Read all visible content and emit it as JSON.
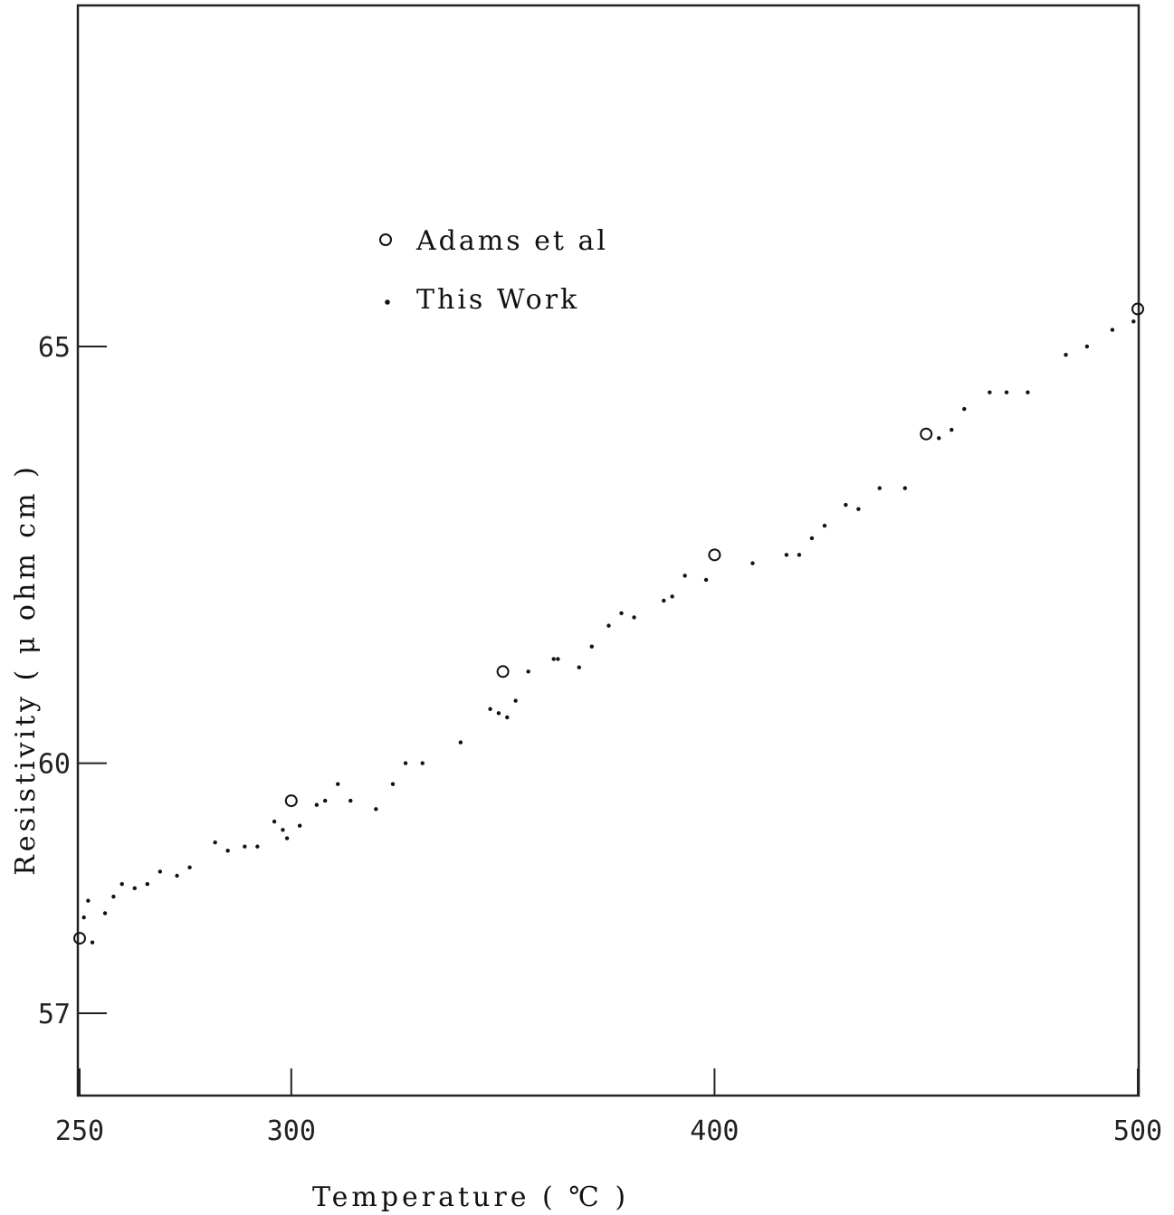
{
  "chart_data": {
    "type": "scatter",
    "title": "",
    "xlabel": "Temperature  ( ℃ )",
    "ylabel": "Resistivity  ( μ  ohm  cm )",
    "xlim": [
      250,
      500
    ],
    "ylim": [
      56,
      69
    ],
    "x_ticks": [
      {
        "value": 250,
        "label": "250"
      },
      {
        "value": 300,
        "label": "300"
      },
      {
        "value": 400,
        "label": "400"
      },
      {
        "value": 500,
        "label": "500"
      }
    ],
    "y_ticks": [
      {
        "value": 57,
        "label": "57"
      },
      {
        "value": 60,
        "label": "60"
      },
      {
        "value": 65,
        "label": "65"
      }
    ],
    "grid": false,
    "legend_position": "top-left",
    "series": [
      {
        "name": "Adams  et  al",
        "marker": "open-circle",
        "x": [
          250,
          300,
          350,
          400,
          450,
          500
        ],
        "y": [
          57.9,
          59.55,
          61.1,
          62.5,
          63.95,
          65.45
        ]
      },
      {
        "name": "This Work",
        "marker": "dot",
        "x": [
          251,
          252,
          253,
          256,
          258,
          260,
          263,
          266,
          269,
          273,
          276,
          282,
          285,
          289,
          292,
          296,
          298,
          299,
          302,
          306,
          308,
          311,
          314,
          320,
          324,
          327,
          331,
          340,
          347,
          349,
          351,
          353,
          356,
          362,
          363,
          368,
          371,
          375,
          378,
          381,
          388,
          390,
          393,
          398,
          409,
          417,
          420,
          423,
          426,
          431,
          434,
          439,
          445,
          453,
          456,
          459,
          465,
          469,
          474,
          483,
          488,
          494,
          499
        ],
        "y": [
          58.15,
          58.35,
          57.85,
          58.2,
          58.4,
          58.55,
          58.5,
          58.55,
          58.7,
          58.65,
          58.75,
          59.05,
          58.95,
          59.0,
          59.0,
          59.3,
          59.2,
          59.1,
          59.25,
          59.5,
          59.55,
          59.75,
          59.55,
          59.45,
          59.75,
          60.0,
          60.0,
          60.25,
          60.65,
          60.6,
          60.55,
          60.75,
          61.1,
          61.25,
          61.25,
          61.15,
          61.4,
          61.65,
          61.8,
          61.75,
          61.95,
          62.0,
          62.25,
          62.2,
          62.4,
          62.5,
          62.5,
          62.7,
          62.85,
          63.1,
          63.05,
          63.3,
          63.3,
          63.9,
          64.0,
          64.25,
          64.45,
          64.45,
          64.45,
          64.9,
          65.0,
          65.2,
          65.3
        ]
      }
    ]
  }
}
